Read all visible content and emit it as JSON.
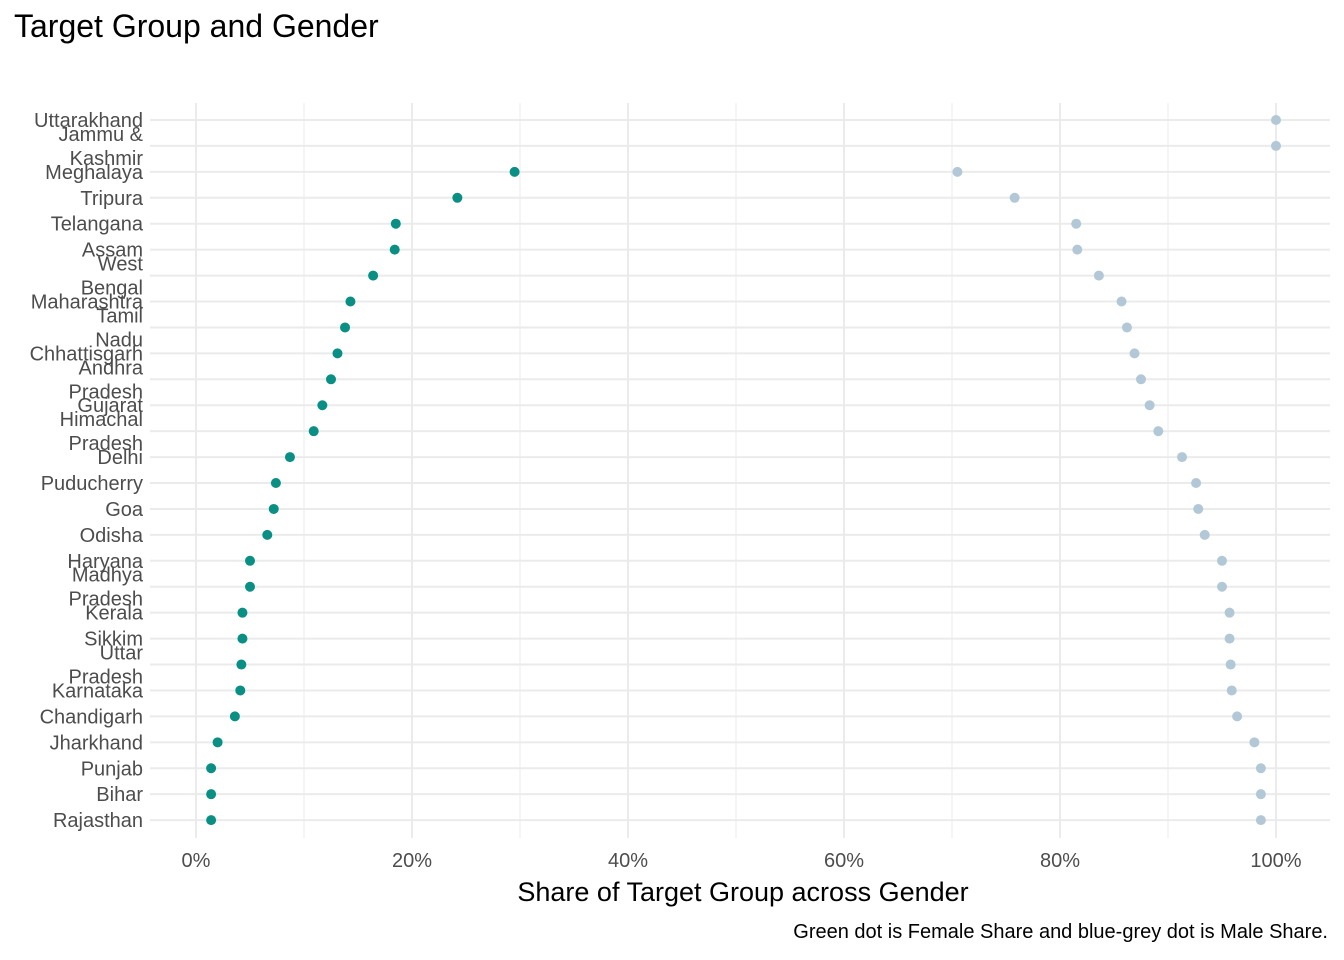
{
  "chart_data": {
    "type": "scatter",
    "title": "Target Group and Gender",
    "xlabel": "Share of Target Group across Gender",
    "ylabel": "",
    "caption": "Green dot is Female Share and blue-grey dot is Male Share.",
    "xlim": [
      0,
      100
    ],
    "x_ticks": [
      "0%",
      "20%",
      "40%",
      "60%",
      "80%",
      "100%"
    ],
    "x_tick_values": [
      0,
      20,
      40,
      60,
      80,
      100
    ],
    "grid": true,
    "colors": {
      "female": "#0a8f84",
      "male": "#b3c8d6",
      "grid": "#ebebeb"
    },
    "categories": [
      [
        "Uttarakhand"
      ],
      [
        "Jammu &",
        "Kashmir"
      ],
      [
        "Meghalaya"
      ],
      [
        "Tripura"
      ],
      [
        "Telangana"
      ],
      [
        "Assam"
      ],
      [
        "West",
        "Bengal"
      ],
      [
        "Maharashtra"
      ],
      [
        "Tamil",
        "Nadu"
      ],
      [
        "Chhattisgarh"
      ],
      [
        "Andhra",
        "Pradesh"
      ],
      [
        "Gujarat"
      ],
      [
        "Himachal",
        "Pradesh"
      ],
      [
        "Delhi"
      ],
      [
        "Puducherry"
      ],
      [
        "Goa"
      ],
      [
        "Odisha"
      ],
      [
        "Haryana"
      ],
      [
        "Madhya",
        "Pradesh"
      ],
      [
        "Kerala"
      ],
      [
        "Sikkim"
      ],
      [
        "Uttar",
        "Pradesh"
      ],
      [
        "Karnataka"
      ],
      [
        "Chandigarh"
      ],
      [
        "Jharkhand"
      ],
      [
        "Punjab"
      ],
      [
        "Bihar"
      ],
      [
        "Rajasthan"
      ]
    ],
    "series": [
      {
        "values": [
          null,
          null,
          29.5,
          24.2,
          18.5,
          18.4,
          16.4,
          14.3,
          13.8,
          13.1,
          12.5,
          11.7,
          10.9,
          8.7,
          7.4,
          7.2,
          6.6,
          5.0,
          5.0,
          4.3,
          4.3,
          4.2,
          4.1,
          3.6,
          2.0,
          1.4,
          1.4,
          1.4
        ]
      },
      {
        "values": [
          100,
          100,
          70.5,
          75.8,
          81.5,
          81.6,
          83.6,
          85.7,
          86.2,
          86.9,
          87.5,
          88.3,
          89.1,
          91.3,
          92.6,
          92.8,
          93.4,
          95.0,
          95.0,
          95.7,
          95.7,
          95.8,
          95.9,
          96.4,
          98.0,
          98.6,
          98.6,
          98.6
        ]
      }
    ]
  }
}
